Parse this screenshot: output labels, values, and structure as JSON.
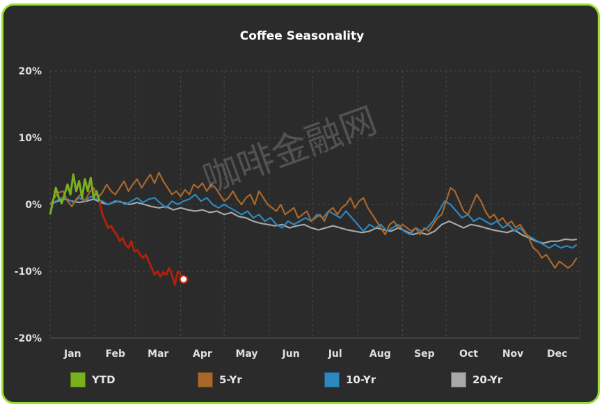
{
  "chart_data": {
    "type": "line",
    "title": "Coffee Seasonality",
    "xlabel": "",
    "ylabel": "",
    "ylim": [
      -20,
      20
    ],
    "yticks": [
      "20%",
      "10%",
      "0%",
      "-10%",
      "-20%"
    ],
    "ytick_values": [
      20,
      10,
      0,
      -10,
      -20
    ],
    "xlim": [
      0,
      365
    ],
    "months": [
      "Jan",
      "Feb",
      "Mar",
      "Apr",
      "May",
      "Jun",
      "Jul",
      "Aug",
      "Sep",
      "Oct",
      "Nov",
      "Dec"
    ],
    "grid": true,
    "legend_position": "bottom",
    "watermark": "咖啡金融网",
    "series": [
      {
        "name": "YTD",
        "color": "#7ab020",
        "early_color": "#7ab020",
        "late_color": "#b0200c",
        "split_day": 34,
        "x": [
          0,
          2,
          4,
          6,
          8,
          10,
          12,
          14,
          16,
          18,
          20,
          22,
          24,
          26,
          28,
          30,
          32,
          34,
          36,
          38,
          40,
          42,
          44,
          46,
          48,
          50,
          52,
          54,
          56,
          58,
          60,
          62,
          64,
          66,
          68,
          70,
          72,
          74,
          76,
          78,
          80,
          82,
          84,
          86,
          88,
          90,
          92
        ],
        "values": [
          -1.5,
          0.5,
          2.5,
          1.0,
          0.2,
          1.5,
          3.0,
          1.5,
          4.5,
          2.0,
          3.5,
          1.0,
          3.8,
          2.0,
          4.0,
          1.0,
          2.0,
          0.5,
          -1.5,
          -2.5,
          -3.5,
          -3.2,
          -4.0,
          -4.5,
          -5.5,
          -5.0,
          -6.0,
          -6.5,
          -5.5,
          -7.0,
          -6.8,
          -7.5,
          -8.0,
          -7.5,
          -8.5,
          -9.5,
          -10.5,
          -10.0,
          -10.8,
          -10.2,
          -10.5,
          -9.5,
          -10.5,
          -12.0,
          -10.0,
          -10.5,
          -11.2
        ],
        "endpoint_value": -11.2
      },
      {
        "name": "5-Yr",
        "color": "#a8682c",
        "x": [
          0,
          3,
          6,
          9,
          12,
          15,
          18,
          21,
          24,
          27,
          30,
          33,
          36,
          39,
          42,
          45,
          48,
          51,
          54,
          57,
          60,
          63,
          66,
          69,
          72,
          75,
          78,
          81,
          84,
          87,
          90,
          93,
          96,
          99,
          102,
          105,
          108,
          111,
          114,
          117,
          120,
          123,
          126,
          129,
          132,
          135,
          138,
          141,
          144,
          147,
          150,
          153,
          156,
          159,
          162,
          165,
          168,
          171,
          174,
          177,
          180,
          183,
          186,
          189,
          192,
          195,
          198,
          201,
          204,
          207,
          210,
          213,
          216,
          219,
          222,
          225,
          228,
          231,
          234,
          237,
          240,
          243,
          246,
          249,
          252,
          255,
          258,
          261,
          264,
          267,
          270,
          273,
          276,
          279,
          282,
          285,
          288,
          291,
          294,
          297,
          300,
          303,
          306,
          309,
          312,
          315,
          318,
          321,
          324,
          327,
          330,
          333,
          336,
          339,
          342,
          345,
          348,
          351,
          354,
          357,
          360,
          363
        ],
        "values": [
          0.0,
          1.0,
          1.8,
          2.0,
          0.5,
          -0.3,
          0.8,
          1.5,
          0.5,
          1.8,
          2.5,
          1.0,
          1.8,
          3.0,
          2.0,
          1.5,
          2.5,
          3.5,
          2.0,
          3.0,
          3.8,
          2.5,
          3.5,
          4.5,
          3.2,
          4.8,
          3.5,
          2.5,
          1.5,
          2.0,
          1.2,
          2.2,
          1.5,
          3.0,
          2.5,
          3.2,
          2.0,
          3.0,
          2.5,
          1.5,
          0.5,
          1.0,
          2.0,
          0.8,
          0.0,
          1.0,
          1.5,
          0.0,
          2.0,
          1.0,
          0.0,
          -0.5,
          -1.0,
          0.0,
          -1.5,
          -1.0,
          -0.5,
          -2.0,
          -1.5,
          -1.0,
          -2.5,
          -2.0,
          -1.5,
          -2.5,
          -1.0,
          -0.5,
          -1.5,
          -0.5,
          0.0,
          1.0,
          -0.5,
          0.5,
          1.0,
          -0.5,
          -1.5,
          -2.5,
          -3.5,
          -4.5,
          -3.0,
          -2.5,
          -3.5,
          -3.0,
          -3.5,
          -4.0,
          -3.5,
          -4.5,
          -3.5,
          -4.0,
          -3.0,
          -2.0,
          -1.5,
          0.5,
          2.5,
          2.0,
          0.5,
          -1.0,
          -1.5,
          0.0,
          1.5,
          0.5,
          -1.0,
          -2.0,
          -1.5,
          -2.5,
          -2.0,
          -3.0,
          -2.5,
          -3.5,
          -3.0,
          -4.0,
          -5.0,
          -6.5,
          -7.0,
          -8.0,
          -7.5,
          -8.5,
          -9.5,
          -8.5,
          -9.0,
          -9.5,
          -9.0,
          -8.0
        ]
      },
      {
        "name": "10-Yr",
        "color": "#2e88c0",
        "x": [
          0,
          4,
          8,
          12,
          16,
          20,
          24,
          28,
          32,
          36,
          40,
          44,
          48,
          52,
          56,
          60,
          64,
          68,
          72,
          76,
          80,
          84,
          88,
          92,
          96,
          100,
          104,
          108,
          112,
          116,
          120,
          124,
          128,
          132,
          136,
          140,
          144,
          148,
          152,
          156,
          160,
          164,
          168,
          172,
          176,
          180,
          184,
          188,
          192,
          196,
          200,
          204,
          208,
          212,
          216,
          220,
          224,
          228,
          232,
          236,
          240,
          244,
          248,
          252,
          256,
          260,
          264,
          268,
          272,
          276,
          280,
          284,
          288,
          292,
          296,
          300,
          304,
          308,
          312,
          316,
          320,
          324,
          328,
          332,
          336,
          340,
          344,
          348,
          352,
          356,
          360,
          363
        ],
        "values": [
          0.0,
          0.5,
          1.0,
          0.8,
          0.3,
          1.0,
          0.5,
          1.2,
          0.8,
          0.5,
          0.0,
          0.3,
          0.5,
          0.0,
          0.5,
          1.0,
          0.3,
          0.8,
          1.0,
          0.2,
          -0.5,
          0.5,
          0.0,
          0.5,
          0.8,
          1.5,
          0.5,
          1.0,
          0.0,
          -0.5,
          0.0,
          -0.5,
          -1.0,
          -1.5,
          -1.0,
          -2.0,
          -1.5,
          -2.5,
          -2.0,
          -3.0,
          -3.5,
          -2.5,
          -3.0,
          -2.5,
          -2.0,
          -2.5,
          -1.5,
          -2.0,
          -1.0,
          -1.5,
          -2.0,
          -1.0,
          -2.0,
          -3.0,
          -4.0,
          -3.0,
          -3.5,
          -3.0,
          -4.0,
          -3.5,
          -3.0,
          -4.0,
          -4.5,
          -3.5,
          -4.0,
          -3.5,
          -2.5,
          -1.0,
          0.5,
          0.0,
          -1.0,
          -2.0,
          -1.5,
          -2.5,
          -2.0,
          -2.5,
          -3.0,
          -2.5,
          -3.5,
          -3.0,
          -4.0,
          -3.5,
          -4.5,
          -5.0,
          -5.5,
          -6.0,
          -6.5,
          -6.0,
          -6.5,
          -6.2,
          -6.5,
          -6.0
        ]
      },
      {
        "name": "20-Yr",
        "color": "#a8a8a8",
        "x": [
          0,
          5,
          10,
          15,
          20,
          25,
          30,
          35,
          40,
          45,
          50,
          55,
          60,
          65,
          70,
          75,
          80,
          85,
          90,
          95,
          100,
          105,
          110,
          115,
          120,
          125,
          130,
          135,
          140,
          145,
          150,
          155,
          160,
          165,
          170,
          175,
          180,
          185,
          190,
          195,
          200,
          205,
          210,
          215,
          220,
          225,
          230,
          235,
          240,
          245,
          250,
          255,
          260,
          265,
          270,
          275,
          280,
          285,
          290,
          295,
          300,
          305,
          310,
          315,
          320,
          325,
          330,
          335,
          340,
          345,
          350,
          355,
          360,
          363
        ],
        "values": [
          0.0,
          0.5,
          0.8,
          0.5,
          0.3,
          0.5,
          0.8,
          0.3,
          0.0,
          0.5,
          0.3,
          0.0,
          0.3,
          0.0,
          -0.3,
          -0.5,
          -0.3,
          -0.8,
          -0.5,
          -0.8,
          -1.0,
          -0.8,
          -1.2,
          -1.0,
          -1.5,
          -1.2,
          -1.8,
          -2.0,
          -2.5,
          -2.8,
          -3.0,
          -3.2,
          -3.0,
          -3.5,
          -3.2,
          -3.0,
          -3.5,
          -3.8,
          -3.5,
          -3.2,
          -3.5,
          -3.8,
          -4.0,
          -4.2,
          -4.0,
          -3.5,
          -3.8,
          -4.0,
          -3.5,
          -4.0,
          -4.5,
          -4.2,
          -4.5,
          -4.0,
          -3.0,
          -2.5,
          -3.0,
          -3.5,
          -3.0,
          -3.2,
          -3.5,
          -3.8,
          -4.0,
          -4.2,
          -3.8,
          -4.5,
          -5.0,
          -5.5,
          -5.8,
          -5.5,
          -5.5,
          -5.2,
          -5.3,
          -5.2
        ]
      }
    ]
  }
}
